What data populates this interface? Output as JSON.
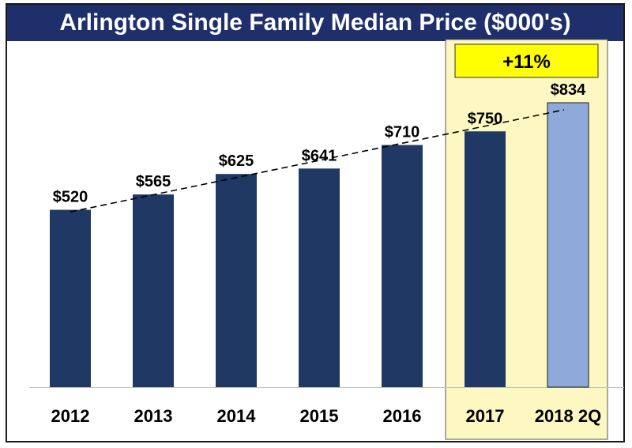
{
  "chart_data": {
    "type": "bar",
    "title": "Arlington Single Family Median Price ($000's)",
    "categories": [
      "2012",
      "2013",
      "2014",
      "2015",
      "2016",
      "2017",
      "2018 2Q"
    ],
    "values": [
      520,
      565,
      625,
      641,
      710,
      750,
      834
    ],
    "data_labels": [
      "$520",
      "$565",
      "$625",
      "$641",
      "$710",
      "$750",
      "$834"
    ],
    "ylim": [
      0,
      834
    ],
    "grid": false,
    "trendline": "dashed",
    "highlight": {
      "categories": [
        "2017",
        "2018 2Q"
      ],
      "annotation": "+11%",
      "color": "#fdf8c2",
      "badge_color": "#ffff00"
    },
    "colors": {
      "bar": "#1f3864",
      "highlight_bar": "#8eaadb",
      "title_background": "#1f2f6b"
    }
  }
}
